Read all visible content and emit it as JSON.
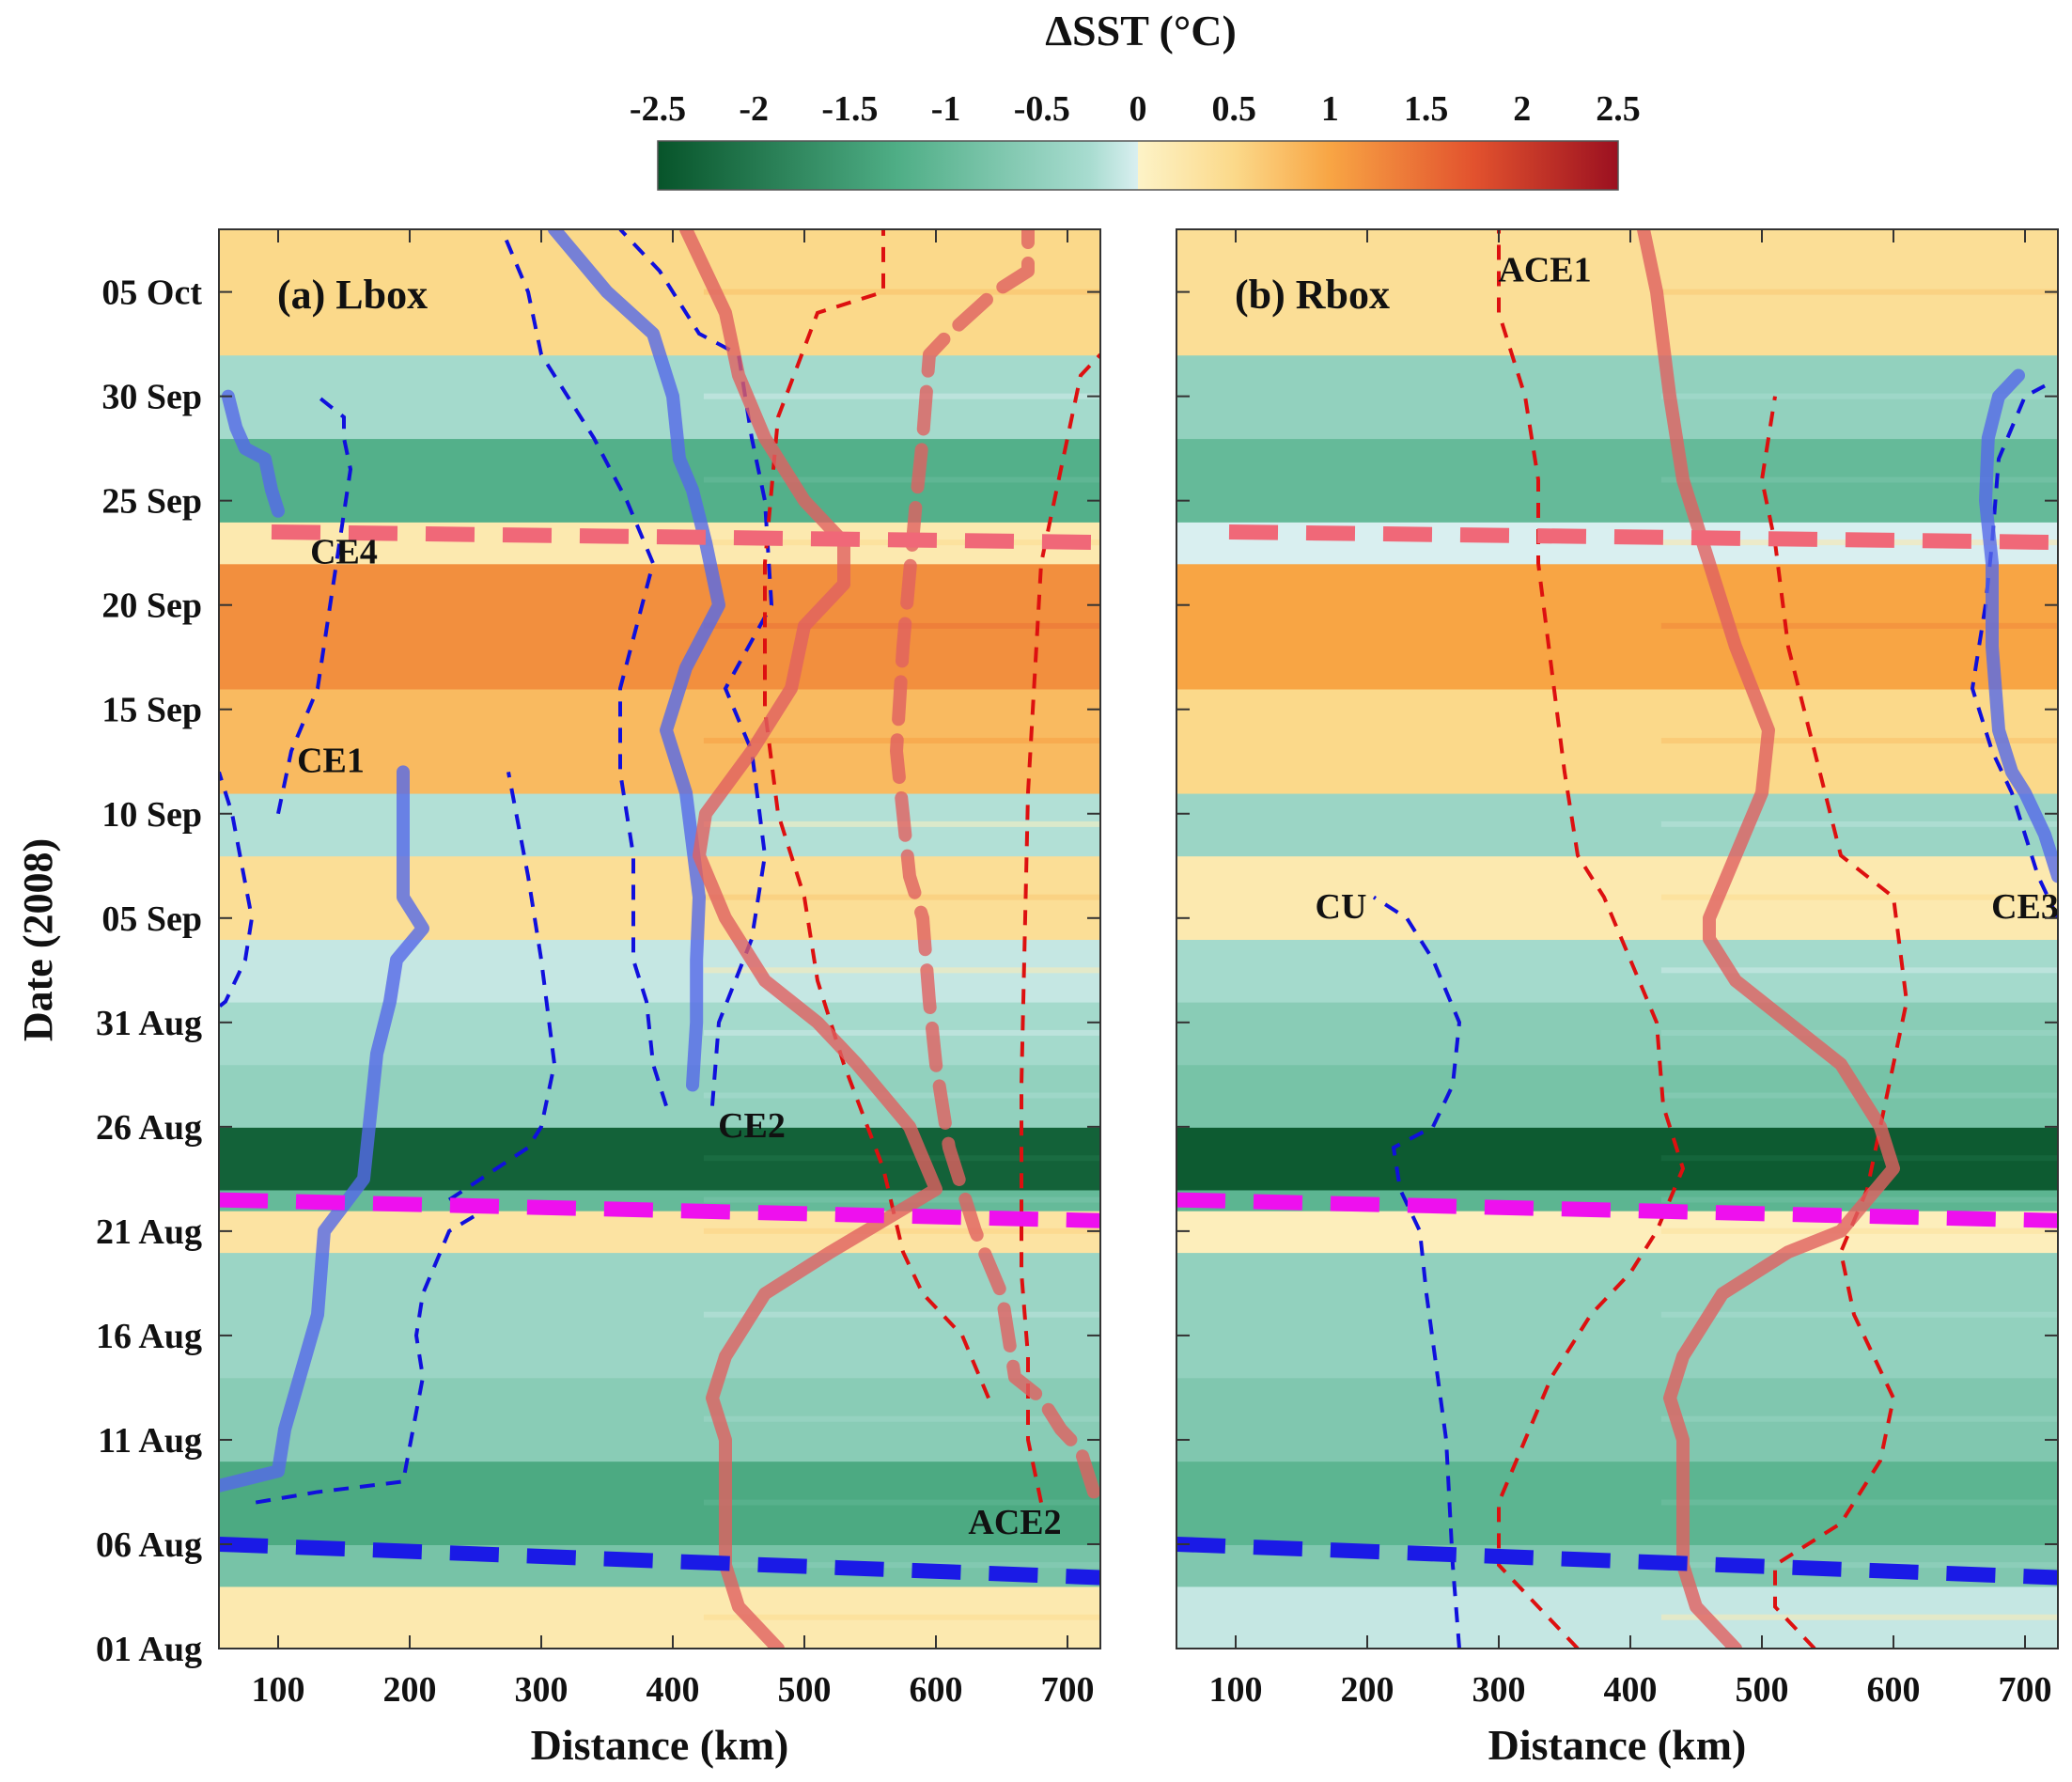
{
  "colorbar": {
    "title": "ΔSST (°C)",
    "min": -2.5,
    "max": 2.5,
    "ticks": [
      -2.5,
      -2,
      -1.5,
      -1,
      -0.5,
      0,
      0.5,
      1,
      1.5,
      2,
      2.5
    ],
    "tick_labels": [
      "-2.5",
      "-2",
      "-1.5",
      "-1",
      "-0.5",
      "0",
      "0.5",
      "1",
      "1.5",
      "2",
      "2.5"
    ],
    "colors": {
      "neg_strong": "#07542a",
      "neg_mid": "#4fae86",
      "neg_weak": "#cfeae6",
      "pos_weak": "#fdf0bf",
      "pos_mid": "#f8a544",
      "pos_strong": "#9b1020"
    }
  },
  "chart_data": [
    {
      "type": "heatmap",
      "title": "(a) Lbox",
      "xlabel": "Distance (km)",
      "ylabel": "Date (2008)",
      "xlim": [
        55,
        725
      ],
      "ylim": [
        0,
        68
      ],
      "x_ticks": [
        100,
        200,
        300,
        400,
        500,
        600,
        700
      ],
      "y_ticks": [
        0,
        5,
        10,
        15,
        20,
        25,
        30,
        35,
        40,
        45,
        50,
        55,
        60,
        65
      ],
      "y_tick_labels": [
        "01 Aug",
        "06 Aug",
        "11 Aug",
        "16 Aug",
        "21 Aug",
        "26 Aug",
        "31 Aug",
        "05 Sep",
        "10 Sep",
        "15 Sep",
        "20 Sep",
        "25 Sep",
        "30 Sep",
        "05 Oct"
      ],
      "bands": [
        {
          "d0": 0,
          "d1": 3,
          "v": 0.2
        },
        {
          "d0": 3,
          "d1": 5,
          "v": -0.8
        },
        {
          "d0": 5,
          "d1": 9,
          "v": -1.3
        },
        {
          "d0": 9,
          "d1": 13,
          "v": -0.6
        },
        {
          "d0": 13,
          "d1": 19,
          "v": -0.4
        },
        {
          "d0": 19,
          "d1": 21,
          "v": 0.3
        },
        {
          "d0": 21,
          "d1": 22,
          "v": -1.0
        },
        {
          "d0": 22,
          "d1": 25,
          "v": -2.3
        },
        {
          "d0": 25,
          "d1": 28,
          "v": -0.5
        },
        {
          "d0": 28,
          "d1": 31,
          "v": -0.3
        },
        {
          "d0": 31,
          "d1": 34,
          "v": -0.1
        },
        {
          "d0": 34,
          "d1": 38,
          "v": 0.4
        },
        {
          "d0": 38,
          "d1": 41,
          "v": -0.2
        },
        {
          "d0": 41,
          "d1": 46,
          "v": 0.8
        },
        {
          "d0": 46,
          "d1": 52,
          "v": 1.2
        },
        {
          "d0": 52,
          "d1": 54,
          "v": 0.2
        },
        {
          "d0": 54,
          "d1": 58,
          "v": -1.2
        },
        {
          "d0": 58,
          "d1": 62,
          "v": -0.3
        },
        {
          "d0": 62,
          "d1": 68,
          "v": 0.5
        }
      ],
      "mean_bands": [
        {
          "d0": 0,
          "d1": 68,
          "v": 0.0
        }
      ],
      "reference_lines": [
        {
          "name": "ref-blue",
          "color": "#1a1ae6",
          "x": [
            55,
            725
          ],
          "d": [
            5,
            3.4
          ]
        },
        {
          "name": "ref-magenta",
          "color": "#ee10ee",
          "x": [
            55,
            725
          ],
          "d": [
            21.5,
            20.5
          ]
        },
        {
          "name": "ref-pink",
          "color": "#f06878",
          "x": [
            95,
            725
          ],
          "d": [
            53.5,
            53
          ]
        }
      ],
      "tracks": [
        {
          "name": "CE1",
          "color": "#5569e8",
          "style": "solid",
          "x": [
            55,
            100,
            105,
            130,
            135,
            165,
            175,
            185,
            190,
            210,
            195,
            195
          ],
          "d": [
            7.8,
            8.5,
            10.5,
            16,
            20,
            22.5,
            28.5,
            31,
            33,
            34.5,
            36,
            42
          ]
        },
        {
          "name": "CE2",
          "color": "#5569e8",
          "style": "solid",
          "x": [
            415,
            418,
            418,
            420,
            410,
            395,
            410,
            435,
            425,
            415,
            405,
            400,
            385,
            350,
            310
          ],
          "d": [
            27,
            30,
            33,
            36,
            41,
            44,
            47,
            50,
            53,
            55.5,
            57,
            60,
            63,
            65,
            68
          ]
        },
        {
          "name": "CE4",
          "color": "#5569e8",
          "style": "solid",
          "x": [
            100,
            95,
            90,
            75,
            68,
            62
          ],
          "d": [
            54.5,
            55.5,
            57,
            57.5,
            58.5,
            60
          ]
        },
        {
          "name": "ACE2",
          "color": "#e06060",
          "style": "dashed",
          "x": [
            720,
            710,
            695,
            680,
            660,
            655,
            650,
            630,
            610,
            600,
            595,
            590,
            580,
            575,
            570,
            575,
            585,
            590,
            595,
            610,
            645,
            670,
            670
          ],
          "d": [
            7.5,
            9.5,
            10.5,
            12,
            13,
            15,
            17,
            20,
            24,
            28,
            31,
            35,
            37,
            40,
            43,
            48,
            55,
            58,
            62,
            63,
            65,
            66,
            68
          ]
        },
        {
          "name": "ACE1-a",
          "color": "#e06060",
          "style": "solid",
          "x": [
            480,
            450,
            440,
            440,
            440,
            430,
            440,
            470,
            520,
            600,
            580,
            540,
            510,
            470,
            440,
            420,
            425,
            460,
            490,
            500,
            530,
            530,
            500,
            470,
            450,
            440,
            425,
            410
          ],
          "d": [
            0,
            2,
            4,
            6,
            10,
            12,
            14,
            17,
            19,
            22,
            25,
            28,
            30,
            32,
            35,
            38,
            40,
            43,
            46,
            49,
            51,
            53,
            55,
            58,
            61,
            64,
            66,
            68
          ]
        }
      ],
      "contours": [
        {
          "color": "#1010dd",
          "x": [
            40,
            60,
            75,
            80,
            65,
            55
          ],
          "d": [
            30,
            31,
            33,
            35,
            40,
            42
          ]
        },
        {
          "color": "#1010dd",
          "x": [
            83,
            130,
            195,
            210,
            205,
            210,
            230,
            270
          ],
          "d": [
            7,
            7.5,
            8,
            13,
            15,
            17,
            20,
            21.5
          ]
        },
        {
          "color": "#1010dd",
          "x": [
            230,
            290,
            300,
            310,
            300,
            290,
            275
          ],
          "d": [
            21.5,
            24,
            25,
            28,
            33,
            37,
            42
          ]
        },
        {
          "color": "#1010dd",
          "x": [
            100,
            110,
            130,
            155,
            150,
            150,
            130
          ],
          "d": [
            40,
            43,
            46,
            56.5,
            58,
            59,
            60
          ]
        },
        {
          "color": "#1010dd",
          "x": [
            430,
            435,
            460,
            470,
            460,
            440,
            475,
            470,
            460,
            450,
            420,
            390,
            360
          ],
          "d": [
            26,
            30,
            34,
            38,
            43,
            46,
            50,
            55,
            58,
            62,
            63,
            66,
            68
          ]
        },
        {
          "color": "#1010dd",
          "x": [
            395,
            385,
            380,
            370,
            370,
            360,
            360,
            385,
            365,
            340,
            300,
            290,
            270
          ],
          "d": [
            26,
            28,
            31,
            33,
            38,
            42,
            46,
            52,
            55,
            58,
            62,
            65,
            68
          ]
        },
        {
          "color": "#dd1010",
          "x": [
            680,
            670,
            670,
            665,
            665,
            670,
            680,
            710,
            725
          ],
          "d": [
            7,
            10,
            14,
            18,
            27,
            41,
            52,
            61,
            62
          ]
        },
        {
          "color": "#dd1010",
          "x": [
            640,
            620,
            590,
            575,
            560,
            530,
            510,
            500,
            490,
            480,
            470,
            470,
            480,
            510,
            560,
            560
          ],
          "d": [
            12,
            15,
            17,
            19,
            23,
            28,
            32,
            36,
            38,
            40,
            45,
            52,
            59,
            64,
            65,
            68
          ]
        }
      ],
      "labels": [
        {
          "text": "CE4",
          "x": 150,
          "d": 52
        },
        {
          "text": "CE1",
          "x": 140,
          "d": 42
        },
        {
          "text": "CE2",
          "x": 460,
          "d": 24.5
        },
        {
          "text": "ACE2",
          "x": 660,
          "d": 5.5
        }
      ]
    },
    {
      "type": "heatmap",
      "title": "(b) Rbox",
      "xlabel": "Distance (km)",
      "ylabel": "",
      "xlim": [
        55,
        725
      ],
      "ylim": [
        0,
        68
      ],
      "x_ticks": [
        100,
        200,
        300,
        400,
        500,
        600,
        700
      ],
      "y_ticks": [],
      "y_tick_labels": [],
      "bands": [
        {
          "d0": 0,
          "d1": 3,
          "v": -0.1
        },
        {
          "d0": 3,
          "d1": 5,
          "v": -0.7
        },
        {
          "d0": 5,
          "d1": 9,
          "v": -1.1
        },
        {
          "d0": 9,
          "d1": 13,
          "v": -0.7
        },
        {
          "d0": 13,
          "d1": 19,
          "v": -0.5
        },
        {
          "d0": 19,
          "d1": 21,
          "v": 0.1
        },
        {
          "d0": 21,
          "d1": 22,
          "v": -1.1
        },
        {
          "d0": 22,
          "d1": 25,
          "v": -2.4
        },
        {
          "d0": 25,
          "d1": 28,
          "v": -0.8
        },
        {
          "d0": 28,
          "d1": 31,
          "v": -0.6
        },
        {
          "d0": 31,
          "d1": 34,
          "v": -0.3
        },
        {
          "d0": 34,
          "d1": 38,
          "v": 0.2
        },
        {
          "d0": 38,
          "d1": 41,
          "v": -0.4
        },
        {
          "d0": 41,
          "d1": 46,
          "v": 0.5
        },
        {
          "d0": 46,
          "d1": 52,
          "v": 1.0
        },
        {
          "d0": 52,
          "d1": 54,
          "v": 0.0
        },
        {
          "d0": 54,
          "d1": 58,
          "v": -1.0
        },
        {
          "d0": 58,
          "d1": 62,
          "v": -0.5
        },
        {
          "d0": 62,
          "d1": 68,
          "v": 0.4
        }
      ],
      "mean_bands": [],
      "reference_lines": [
        {
          "name": "ref-blue",
          "color": "#1a1ae6",
          "x": [
            55,
            725
          ],
          "d": [
            5,
            3.4
          ]
        },
        {
          "name": "ref-magenta",
          "color": "#ee10ee",
          "x": [
            55,
            725
          ],
          "d": [
            21.5,
            20.5
          ]
        },
        {
          "name": "ref-pink",
          "color": "#f06878",
          "x": [
            95,
            725
          ],
          "d": [
            53.5,
            53
          ]
        }
      ],
      "tracks": [
        {
          "name": "ACE1",
          "color": "#e06060",
          "style": "solid",
          "x": [
            480,
            450,
            440,
            440,
            440,
            430,
            440,
            470,
            520,
            560,
            600,
            590,
            560,
            520,
            480,
            460,
            460,
            480,
            500,
            505,
            480,
            460,
            440,
            430,
            420,
            410
          ],
          "d": [
            0,
            2,
            4,
            6,
            10,
            12,
            14,
            17,
            19,
            20,
            23,
            25,
            28,
            30,
            32,
            34,
            35,
            38,
            41,
            44,
            48,
            52,
            56,
            60,
            65,
            68
          ]
        },
        {
          "name": "CE3",
          "color": "#5569e8",
          "style": "solid",
          "x": [
            725,
            715,
            700,
            690,
            680,
            675,
            675,
            670,
            672,
            680,
            695
          ],
          "d": [
            37,
            39,
            41,
            42,
            44,
            48,
            52,
            55,
            58,
            60,
            61
          ]
        }
      ],
      "contours": [
        {
          "color": "#1010dd",
          "x": [
            270,
            265,
            260,
            245,
            240,
            225,
            220,
            250,
            265,
            270,
            250,
            230,
            205
          ],
          "d": [
            0,
            4,
            10,
            17,
            20,
            22,
            24,
            25,
            27,
            30,
            33,
            35,
            36
          ]
        },
        {
          "color": "#dd1010",
          "x": [
            360,
            330,
            300,
            300,
            320,
            340,
            370,
            400,
            420,
            440,
            425,
            420,
            400,
            380,
            360,
            350,
            340,
            330,
            330,
            320,
            300,
            300
          ],
          "d": [
            0,
            2,
            4,
            7,
            10,
            13,
            16,
            18,
            20,
            23,
            26,
            30,
            33,
            36,
            38,
            42,
            47,
            52,
            56,
            60,
            64,
            68
          ]
        },
        {
          "color": "#dd1010",
          "x": [
            540,
            510,
            510,
            560,
            590,
            600,
            570,
            560,
            580,
            590,
            600,
            610,
            600,
            560,
            540,
            520,
            510,
            500,
            510
          ],
          "d": [
            0,
            2,
            4,
            6,
            9,
            12,
            16,
            19,
            22,
            25,
            28,
            31,
            36,
            38,
            43,
            48,
            53,
            56,
            60
          ]
        },
        {
          "color": "#1010dd",
          "x": [
            725,
            710,
            690,
            675,
            660,
            670,
            675,
            680,
            700,
            715
          ],
          "d": [
            35,
            37,
            41,
            43,
            46,
            50,
            53,
            57,
            60,
            60.5
          ]
        }
      ],
      "labels": [
        {
          "text": "ACE1",
          "x": 335,
          "d": 65.5
        },
        {
          "text": "CU",
          "x": 180,
          "d": 35
        },
        {
          "text": "CE3",
          "x": 700,
          "d": 35
        }
      ]
    }
  ]
}
